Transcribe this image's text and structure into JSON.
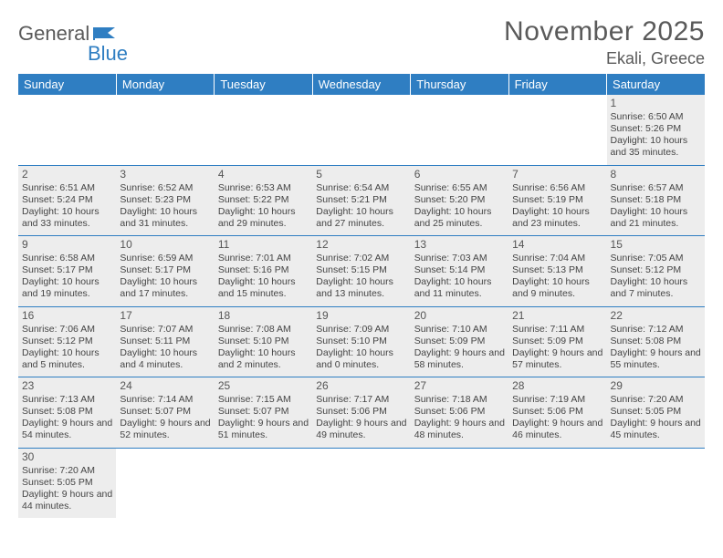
{
  "logo": {
    "text1": "General",
    "text2": "Blue"
  },
  "title": "November 2025",
  "location": "Ekali, Greece",
  "colors": {
    "header_bg": "#2f7ec2",
    "header_text": "#ffffff",
    "border": "#2f7ec2",
    "shade": "#ededed",
    "text": "#444444",
    "title": "#5a5a5a"
  },
  "weekdays": [
    "Sunday",
    "Monday",
    "Tuesday",
    "Wednesday",
    "Thursday",
    "Friday",
    "Saturday"
  ],
  "cells": [
    [
      {
        "blank": true
      },
      {
        "blank": true
      },
      {
        "blank": true
      },
      {
        "blank": true
      },
      {
        "blank": true
      },
      {
        "blank": true
      },
      {
        "day": 1,
        "shade": true,
        "sunrise": "Sunrise: 6:50 AM",
        "sunset": "Sunset: 5:26 PM",
        "daylight": "Daylight: 10 hours and 35 minutes."
      }
    ],
    [
      {
        "day": 2,
        "shade": true,
        "sunrise": "Sunrise: 6:51 AM",
        "sunset": "Sunset: 5:24 PM",
        "daylight": "Daylight: 10 hours and 33 minutes."
      },
      {
        "day": 3,
        "shade": true,
        "sunrise": "Sunrise: 6:52 AM",
        "sunset": "Sunset: 5:23 PM",
        "daylight": "Daylight: 10 hours and 31 minutes."
      },
      {
        "day": 4,
        "shade": true,
        "sunrise": "Sunrise: 6:53 AM",
        "sunset": "Sunset: 5:22 PM",
        "daylight": "Daylight: 10 hours and 29 minutes."
      },
      {
        "day": 5,
        "shade": true,
        "sunrise": "Sunrise: 6:54 AM",
        "sunset": "Sunset: 5:21 PM",
        "daylight": "Daylight: 10 hours and 27 minutes."
      },
      {
        "day": 6,
        "shade": true,
        "sunrise": "Sunrise: 6:55 AM",
        "sunset": "Sunset: 5:20 PM",
        "daylight": "Daylight: 10 hours and 25 minutes."
      },
      {
        "day": 7,
        "shade": true,
        "sunrise": "Sunrise: 6:56 AM",
        "sunset": "Sunset: 5:19 PM",
        "daylight": "Daylight: 10 hours and 23 minutes."
      },
      {
        "day": 8,
        "shade": true,
        "sunrise": "Sunrise: 6:57 AM",
        "sunset": "Sunset: 5:18 PM",
        "daylight": "Daylight: 10 hours and 21 minutes."
      }
    ],
    [
      {
        "day": 9,
        "shade": true,
        "sunrise": "Sunrise: 6:58 AM",
        "sunset": "Sunset: 5:17 PM",
        "daylight": "Daylight: 10 hours and 19 minutes."
      },
      {
        "day": 10,
        "shade": true,
        "sunrise": "Sunrise: 6:59 AM",
        "sunset": "Sunset: 5:17 PM",
        "daylight": "Daylight: 10 hours and 17 minutes."
      },
      {
        "day": 11,
        "shade": true,
        "sunrise": "Sunrise: 7:01 AM",
        "sunset": "Sunset: 5:16 PM",
        "daylight": "Daylight: 10 hours and 15 minutes."
      },
      {
        "day": 12,
        "shade": true,
        "sunrise": "Sunrise: 7:02 AM",
        "sunset": "Sunset: 5:15 PM",
        "daylight": "Daylight: 10 hours and 13 minutes."
      },
      {
        "day": 13,
        "shade": true,
        "sunrise": "Sunrise: 7:03 AM",
        "sunset": "Sunset: 5:14 PM",
        "daylight": "Daylight: 10 hours and 11 minutes."
      },
      {
        "day": 14,
        "shade": true,
        "sunrise": "Sunrise: 7:04 AM",
        "sunset": "Sunset: 5:13 PM",
        "daylight": "Daylight: 10 hours and 9 minutes."
      },
      {
        "day": 15,
        "shade": true,
        "sunrise": "Sunrise: 7:05 AM",
        "sunset": "Sunset: 5:12 PM",
        "daylight": "Daylight: 10 hours and 7 minutes."
      }
    ],
    [
      {
        "day": 16,
        "shade": true,
        "sunrise": "Sunrise: 7:06 AM",
        "sunset": "Sunset: 5:12 PM",
        "daylight": "Daylight: 10 hours and 5 minutes."
      },
      {
        "day": 17,
        "shade": true,
        "sunrise": "Sunrise: 7:07 AM",
        "sunset": "Sunset: 5:11 PM",
        "daylight": "Daylight: 10 hours and 4 minutes."
      },
      {
        "day": 18,
        "shade": true,
        "sunrise": "Sunrise: 7:08 AM",
        "sunset": "Sunset: 5:10 PM",
        "daylight": "Daylight: 10 hours and 2 minutes."
      },
      {
        "day": 19,
        "shade": true,
        "sunrise": "Sunrise: 7:09 AM",
        "sunset": "Sunset: 5:10 PM",
        "daylight": "Daylight: 10 hours and 0 minutes."
      },
      {
        "day": 20,
        "shade": true,
        "sunrise": "Sunrise: 7:10 AM",
        "sunset": "Sunset: 5:09 PM",
        "daylight": "Daylight: 9 hours and 58 minutes."
      },
      {
        "day": 21,
        "shade": true,
        "sunrise": "Sunrise: 7:11 AM",
        "sunset": "Sunset: 5:09 PM",
        "daylight": "Daylight: 9 hours and 57 minutes."
      },
      {
        "day": 22,
        "shade": true,
        "sunrise": "Sunrise: 7:12 AM",
        "sunset": "Sunset: 5:08 PM",
        "daylight": "Daylight: 9 hours and 55 minutes."
      }
    ],
    [
      {
        "day": 23,
        "shade": true,
        "sunrise": "Sunrise: 7:13 AM",
        "sunset": "Sunset: 5:08 PM",
        "daylight": "Daylight: 9 hours and 54 minutes."
      },
      {
        "day": 24,
        "shade": true,
        "sunrise": "Sunrise: 7:14 AM",
        "sunset": "Sunset: 5:07 PM",
        "daylight": "Daylight: 9 hours and 52 minutes."
      },
      {
        "day": 25,
        "shade": true,
        "sunrise": "Sunrise: 7:15 AM",
        "sunset": "Sunset: 5:07 PM",
        "daylight": "Daylight: 9 hours and 51 minutes."
      },
      {
        "day": 26,
        "shade": true,
        "sunrise": "Sunrise: 7:17 AM",
        "sunset": "Sunset: 5:06 PM",
        "daylight": "Daylight: 9 hours and 49 minutes."
      },
      {
        "day": 27,
        "shade": true,
        "sunrise": "Sunrise: 7:18 AM",
        "sunset": "Sunset: 5:06 PM",
        "daylight": "Daylight: 9 hours and 48 minutes."
      },
      {
        "day": 28,
        "shade": true,
        "sunrise": "Sunrise: 7:19 AM",
        "sunset": "Sunset: 5:06 PM",
        "daylight": "Daylight: 9 hours and 46 minutes."
      },
      {
        "day": 29,
        "shade": true,
        "sunrise": "Sunrise: 7:20 AM",
        "sunset": "Sunset: 5:05 PM",
        "daylight": "Daylight: 9 hours and 45 minutes."
      }
    ],
    [
      {
        "day": 30,
        "shade": true,
        "sunrise": "Sunrise: 7:20 AM",
        "sunset": "Sunset: 5:05 PM",
        "daylight": "Daylight: 9 hours and 44 minutes."
      },
      {
        "blank": true
      },
      {
        "blank": true
      },
      {
        "blank": true
      },
      {
        "blank": true
      },
      {
        "blank": true
      },
      {
        "blank": true
      }
    ]
  ]
}
